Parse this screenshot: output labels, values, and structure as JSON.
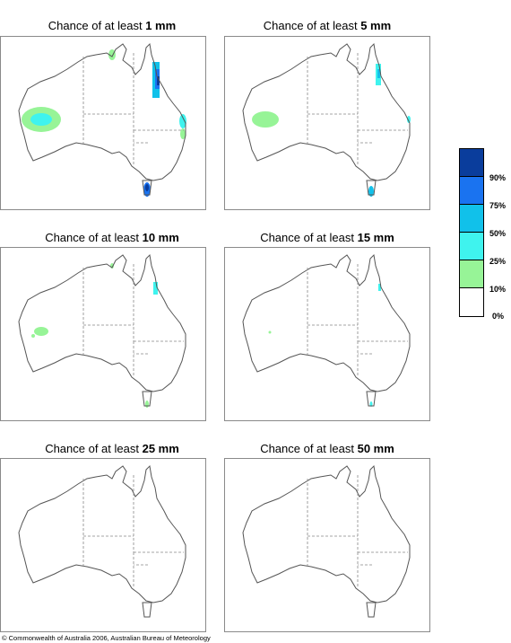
{
  "panels": [
    {
      "prefix": "Chance of at least",
      "amount": "1 mm"
    },
    {
      "prefix": "Chance of at least",
      "amount": "5 mm"
    },
    {
      "prefix": "Chance of at least",
      "amount": "10 mm"
    },
    {
      "prefix": "Chance of at least",
      "amount": "15 mm"
    },
    {
      "prefix": "Chance of at least",
      "amount": "25 mm"
    },
    {
      "prefix": "Chance of at least",
      "amount": "50 mm"
    }
  ],
  "legend": {
    "labels": [
      "90%",
      "75%",
      "50%",
      "25%",
      "10%",
      "0%"
    ],
    "colors": [
      "#0a3d9c",
      "#1a73f0",
      "#11c1ea",
      "#3ff3ee",
      "#97f497",
      "#ffffff"
    ]
  },
  "copyright": "© Commonwealth of Australia 2006, Australian Bureau of Meteorology"
}
